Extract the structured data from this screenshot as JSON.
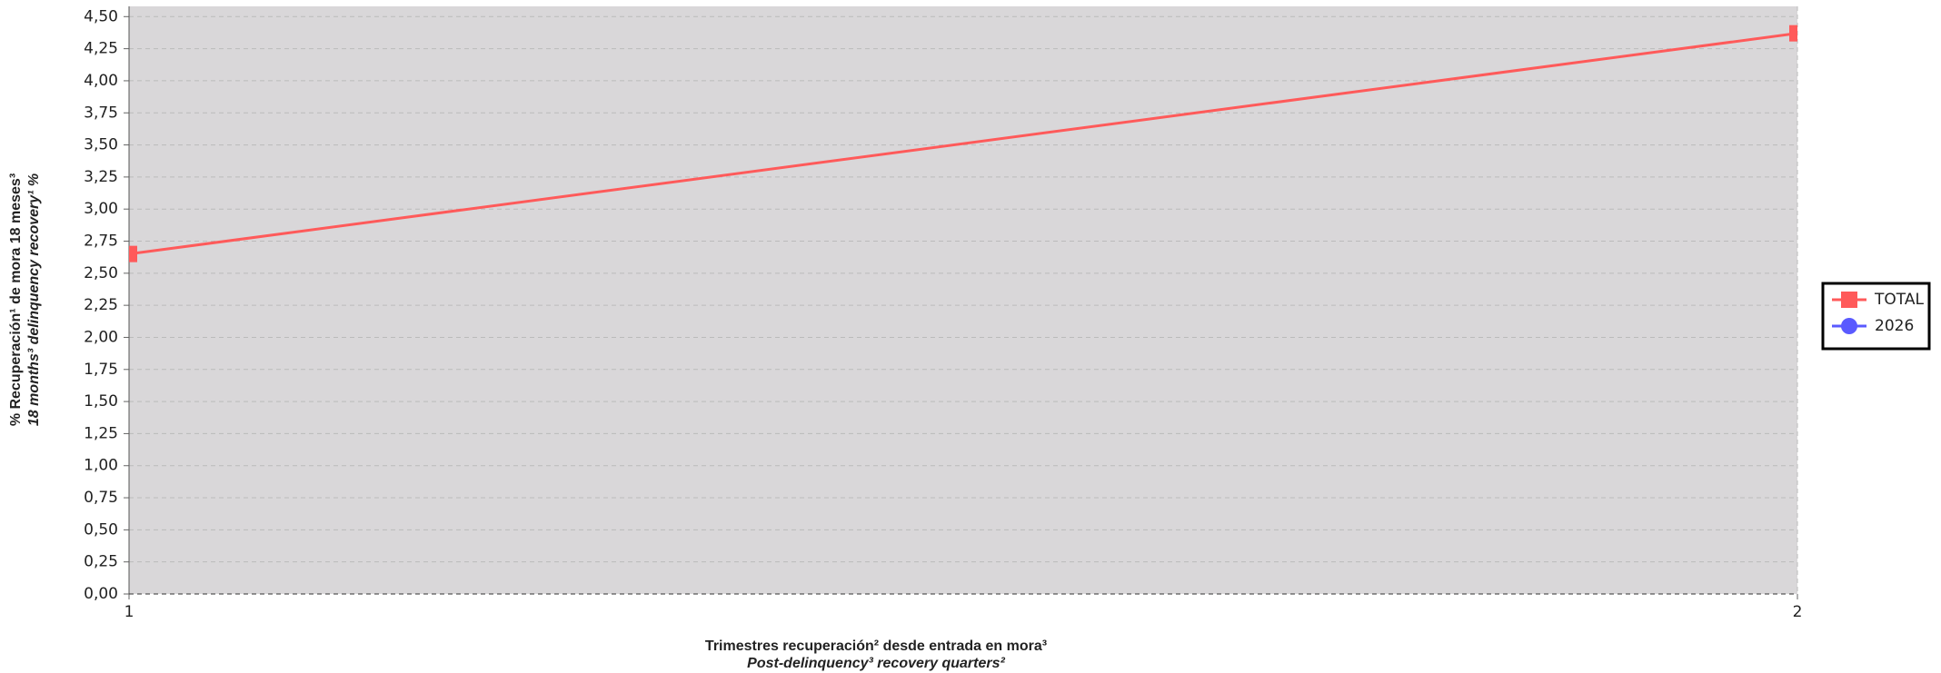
{
  "chart_data": {
    "type": "line",
    "y_label": [
      "% Recuperación¹ de mora 18 meses³",
      "18 months³ delinquency recovery¹ %"
    ],
    "x_label": [
      "Trimestres recuperación² desde entrada en mora³",
      "Post-delinquency³ recovery quarters²"
    ],
    "x": [
      1,
      2
    ],
    "xlim": [
      1,
      2
    ],
    "xticks": [
      1,
      2
    ],
    "ylim": [
      0,
      4.58
    ],
    "yticks": [
      {
        "value": 0,
        "label": "0,00"
      },
      {
        "value": 0.25,
        "label": "0,25"
      },
      {
        "value": 0.5,
        "label": "0,50"
      },
      {
        "value": 0.75,
        "label": "0,75"
      },
      {
        "value": 1,
        "label": "1,00"
      },
      {
        "value": 1.25,
        "label": "1,25"
      },
      {
        "value": 1.5,
        "label": "1,50"
      },
      {
        "value": 1.75,
        "label": "1,75"
      },
      {
        "value": 2,
        "label": "2,00"
      },
      {
        "value": 2.25,
        "label": "2,25"
      },
      {
        "value": 2.5,
        "label": "2,50"
      },
      {
        "value": 2.75,
        "label": "2,75"
      },
      {
        "value": 3,
        "label": "3,00"
      },
      {
        "value": 3.25,
        "label": "3,25"
      },
      {
        "value": 3.5,
        "label": "3,50"
      },
      {
        "value": 3.75,
        "label": "3,75"
      },
      {
        "value": 4,
        "label": "4,00"
      },
      {
        "value": 4.25,
        "label": "4,25"
      },
      {
        "value": 4.5,
        "label": "4,50"
      }
    ],
    "grid": true,
    "legend": "right",
    "series": [
      {
        "name": "TOTAL",
        "color": "#ff5a5a",
        "marker": "square",
        "values": [
          2.65,
          4.37
        ]
      },
      {
        "name": "2026",
        "color": "#5a5aff",
        "marker": "circle",
        "values": [
          null,
          null
        ]
      }
    ]
  }
}
